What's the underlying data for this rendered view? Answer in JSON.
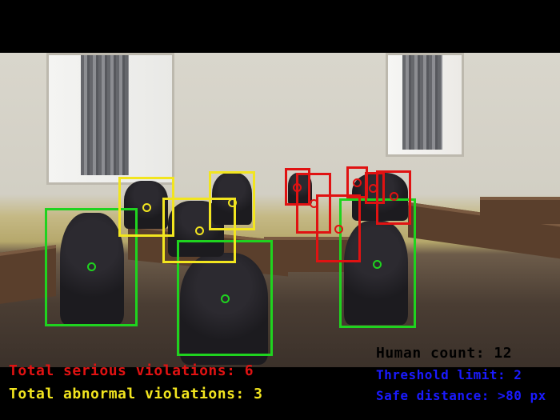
{
  "overlay": {
    "serious_label": "Total serious violations: 6",
    "abnormal_label": "Total abnormal violations: 3",
    "human_count_label": "Human count: 12",
    "threshold_label": "Threshold limit: 2",
    "safe_distance_label": "Safe distance: >80 px"
  },
  "colors": {
    "safe": "#1fd31f",
    "abnormal": "#f2e51f",
    "serious": "#e01212",
    "info_text": "#1a1aff",
    "count_text": "#000000"
  }
}
